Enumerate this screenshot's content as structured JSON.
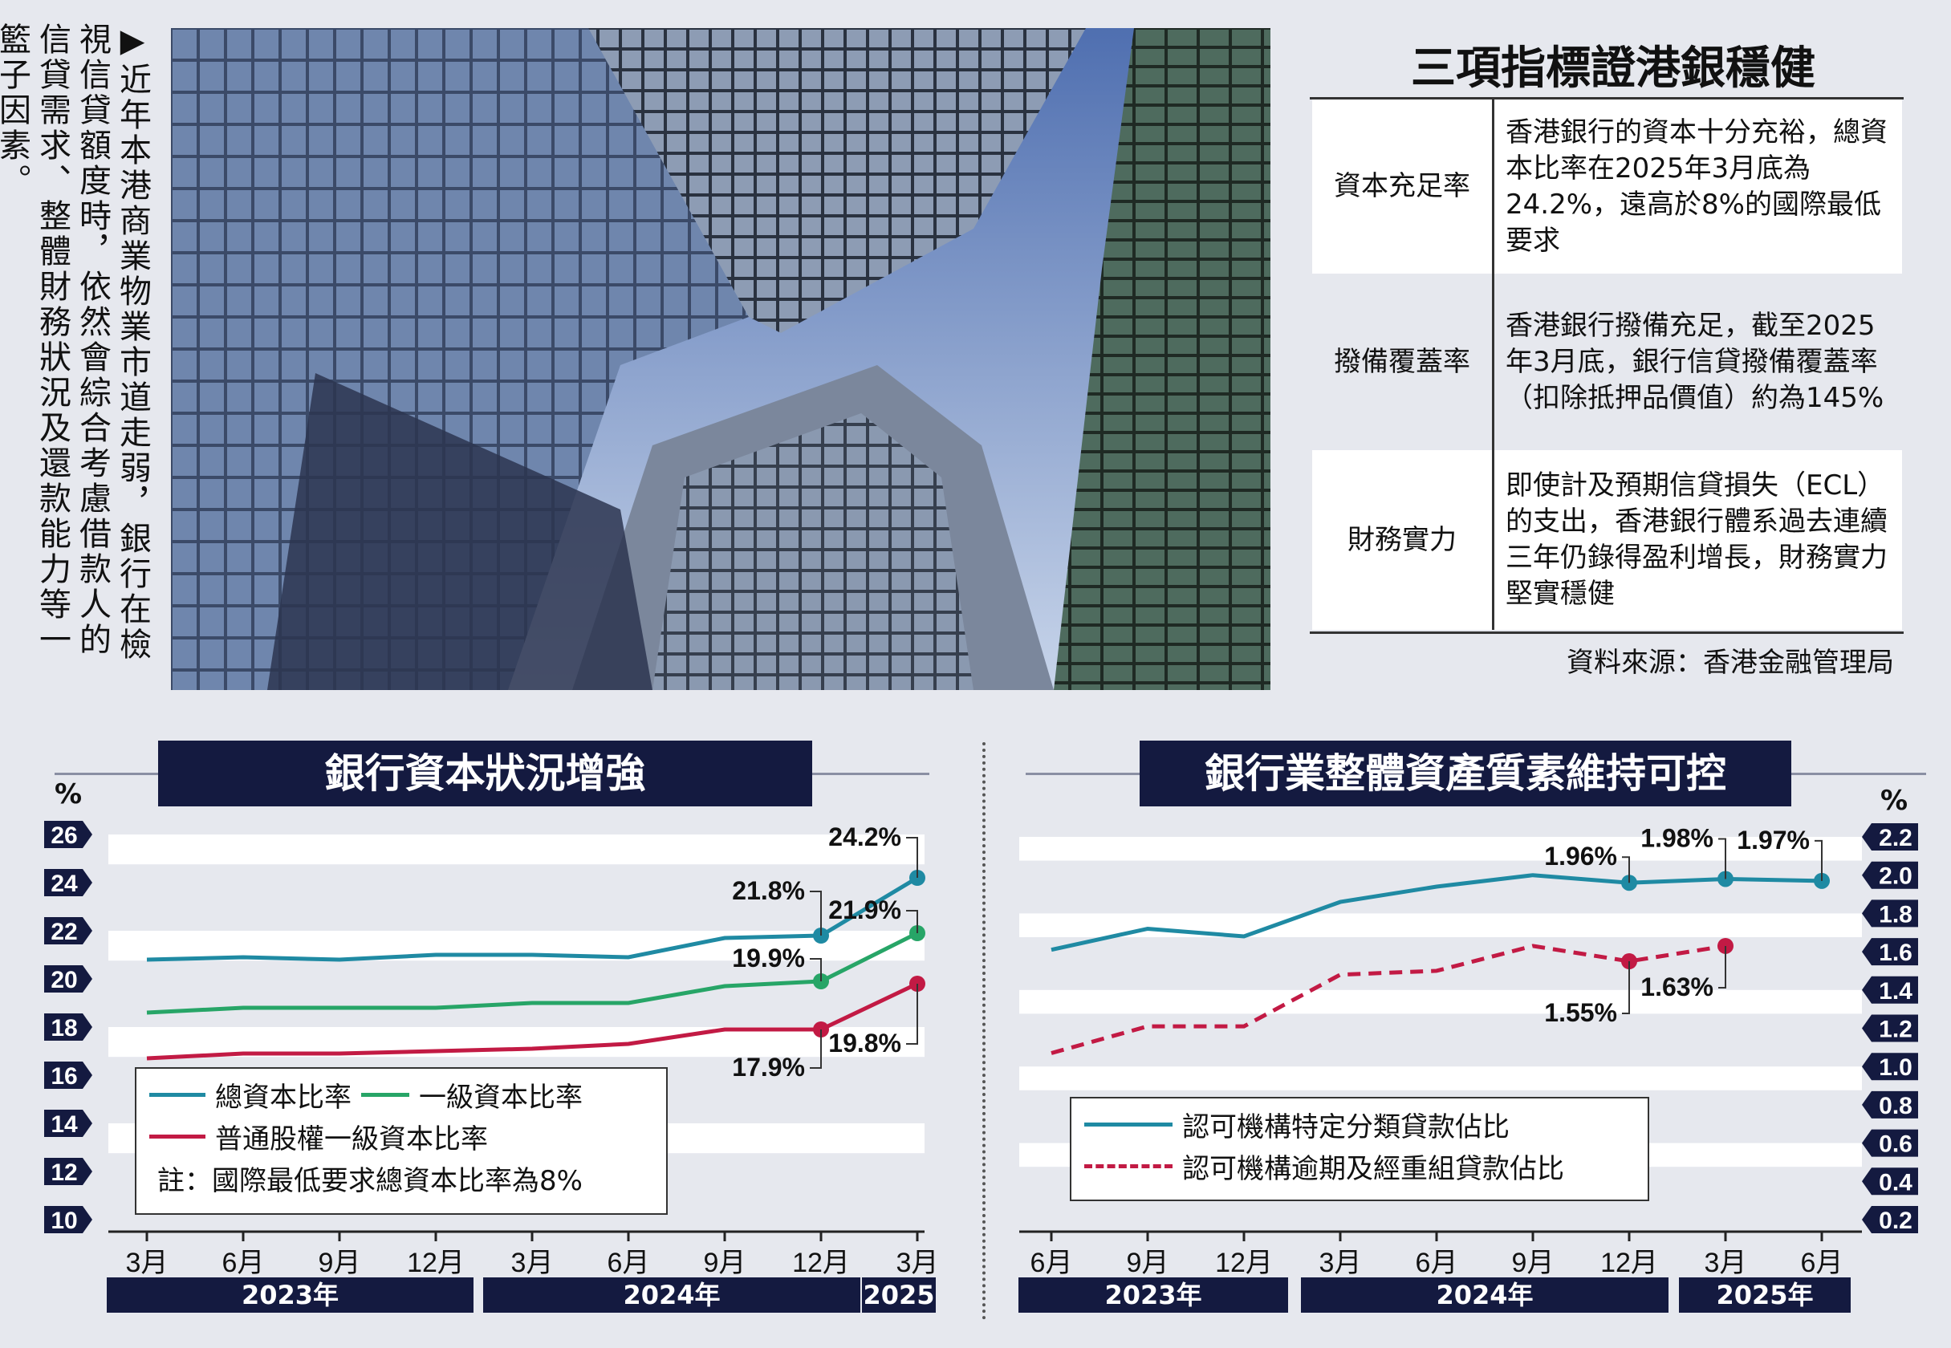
{
  "caption": "▶近年本港商業物業市道走弱，銀行在檢視信貸額度時，依然會綜合考慮借款人的信貸需求、整體財務狀況及還款能力等一籃子因素。",
  "info": {
    "title": "三項指標證港銀穩健",
    "rows": [
      {
        "key": "資本充足率",
        "value": "香港銀行的資本十分充裕，總資本比率在2025年3月底為24.2%，遠高於8%的國際最低要求"
      },
      {
        "key": "撥備覆蓋率",
        "value": "香港銀行撥備充足，截至2025年3月底，銀行信貸撥備覆蓋率（扣除抵押品價值）約為145%"
      },
      {
        "key": "財務實力",
        "value": "即使計及預期信貸損失（ECL）的支出，香港銀行體系過去連續三年仍錄得盈利增長，財務實力堅實穩健"
      }
    ],
    "source": "資料來源：香港金融管理局"
  },
  "colors": {
    "teal": "#1f8aa3",
    "green": "#27a567",
    "crimson": "#c21a44",
    "navy": "#141a40"
  },
  "chart_data": [
    {
      "type": "line",
      "title": "銀行資本狀況增強",
      "ylabel": "%",
      "ylim": [
        10,
        26
      ],
      "yticks": [
        "26",
        "24",
        "22",
        "20",
        "18",
        "16",
        "14",
        "12",
        "10"
      ],
      "categories": [
        "3月",
        "6月",
        "9月",
        "12月",
        "3月",
        "6月",
        "9月",
        "12月",
        "3月"
      ],
      "year_groups": [
        "2023年",
        "2024年",
        "2025"
      ],
      "series": [
        {
          "name": "總資本比率",
          "color": "#1f8aa3",
          "dash": false,
          "values": [
            20.8,
            20.9,
            20.8,
            21.0,
            21.0,
            20.9,
            21.7,
            21.8,
            24.2
          ],
          "labels": {
            "7": "21.8%",
            "8": "24.2%"
          }
        },
        {
          "name": "一級資本比率",
          "color": "#27a567",
          "dash": false,
          "values": [
            18.6,
            18.8,
            18.8,
            18.8,
            19.0,
            19.0,
            19.7,
            19.9,
            21.9
          ],
          "labels": {
            "7": "19.9%",
            "8": "21.9%"
          }
        },
        {
          "name": "普通股權一級資本比率",
          "color": "#c21a44",
          "dash": false,
          "values": [
            16.7,
            16.9,
            16.9,
            17.0,
            17.1,
            17.3,
            17.9,
            17.9,
            19.8
          ],
          "labels": {
            "7": "17.9%",
            "8": "19.8%"
          }
        }
      ],
      "note": "註：國際最低要求總資本比率為8%"
    },
    {
      "type": "line",
      "title": "銀行業整體資產質素維持可控",
      "ylabel": "%",
      "ylim": [
        0.2,
        2.2
      ],
      "yticks": [
        "2.2",
        "2.0",
        "1.8",
        "1.6",
        "1.4",
        "1.2",
        "1.0",
        "0.8",
        "0.6",
        "0.4",
        "0.2"
      ],
      "categories": [
        "6月",
        "9月",
        "12月",
        "3月",
        "6月",
        "9月",
        "12月",
        "3月",
        "6月"
      ],
      "year_groups": [
        "2023年",
        "2024年",
        "2025年"
      ],
      "series": [
        {
          "name": "認可機構特定分類貸款佔比",
          "color": "#1f8aa3",
          "dash": false,
          "values": [
            1.61,
            1.72,
            1.68,
            1.86,
            1.94,
            2.0,
            1.96,
            1.98,
            1.97
          ],
          "labels": {
            "6": "1.96%",
            "7": "1.98%",
            "8": "1.97%"
          }
        },
        {
          "name": "認可機構逾期及經重組貸款佔比",
          "color": "#c21a44",
          "dash": true,
          "values": [
            1.07,
            1.21,
            1.21,
            1.48,
            1.5,
            1.63,
            1.55,
            1.63,
            null
          ],
          "labels": {
            "6": "1.55%",
            "7": "1.63%"
          }
        }
      ]
    }
  ]
}
